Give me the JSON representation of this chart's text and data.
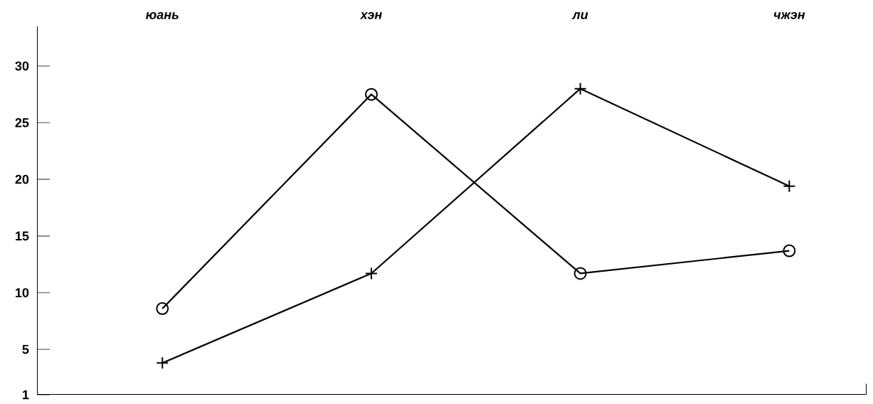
{
  "chart_data": {
    "type": "line",
    "categories": [
      "юань",
      "хэн",
      "ли",
      "чжэн"
    ],
    "series": [
      {
        "color": "#000000",
        "marker": "circle",
        "values": [
          8.6,
          27.5,
          11.7,
          13.7
        ]
      },
      {
        "color": "#000000",
        "marker": "cross",
        "values": [
          3.8,
          11.7,
          28,
          19.4
        ]
      }
    ],
    "ylim": [
      1,
      33.5
    ],
    "yticks": [
      1,
      5,
      10,
      15,
      20,
      25,
      30
    ],
    "line_style": "solid",
    "grid": false
  }
}
